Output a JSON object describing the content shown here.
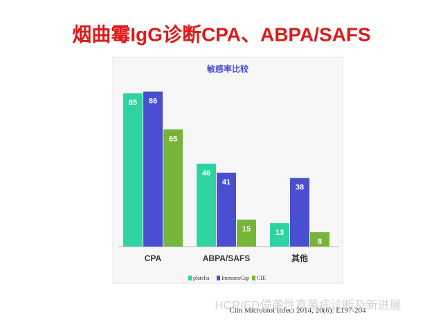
{
  "title": "烟曲霉IgG诊断CPA、ABPA/SAFS",
  "chart_data": {
    "type": "bar",
    "title": "敏感率比较",
    "categories": [
      "CPA",
      "ABPA/SAFS",
      "其他"
    ],
    "series": [
      {
        "name": "platelia",
        "color": "#2fd3a2",
        "values": [
          85,
          46,
          13
        ]
      },
      {
        "name": "ImmunoCap",
        "color": "#4a4fd2",
        "values": [
          86,
          41,
          38
        ]
      },
      {
        "name": "CIE",
        "color": "#76b53a",
        "values": [
          65,
          15,
          8
        ]
      }
    ]
  },
  "citation": "Clin Microbiol Infect 2014, 20(6): E197-204",
  "watermark": "HCRIED侵袭性真菌病诊断及新进展"
}
